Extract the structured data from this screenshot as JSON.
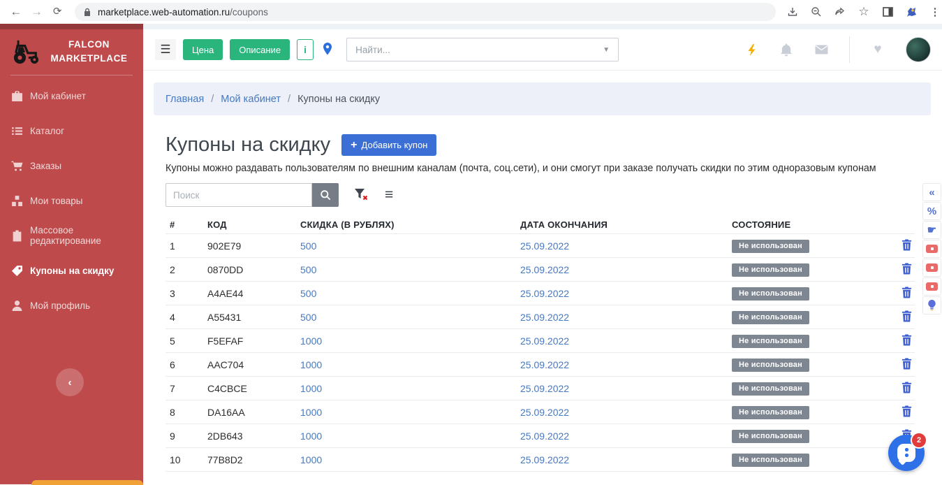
{
  "browser": {
    "url_host": "marketplace.web-automation.ru",
    "url_path": "/coupons"
  },
  "sidebar": {
    "logo_line1": "FALCON",
    "logo_line2": "MARKETPLACE",
    "items": [
      {
        "key": "cabinet",
        "icon": "briefcase",
        "label": "Мой кабинет"
      },
      {
        "key": "catalog",
        "icon": "list",
        "label": "Каталог"
      },
      {
        "key": "orders",
        "icon": "cart",
        "label": "Заказы"
      },
      {
        "key": "products",
        "icon": "boxes",
        "label": "Мои товары"
      },
      {
        "key": "bulk-edit",
        "icon": "clipboard",
        "label": "Массовое редактирование"
      },
      {
        "key": "coupons",
        "icon": "tag",
        "label": "Купоны на скидку",
        "active": true
      },
      {
        "key": "profile",
        "icon": "user",
        "label": "Мой профиль"
      }
    ]
  },
  "topbar": {
    "price_button": "Цена",
    "description_button": "Описание",
    "info_button": "i",
    "find_placeholder": "Найти..."
  },
  "breadcrumb": {
    "items": [
      "Главная",
      "Мой кабинет",
      "Купоны на скидку"
    ],
    "separator": "/"
  },
  "page": {
    "title": "Купоны на скидку",
    "add_button_plus": "+",
    "add_button_label": "Добавить купон",
    "description": "Купоны можно раздавать пользователям по внешним каналам (почта, соц.сети), и они смогут при заказе получать скидки по этим одноразовым купонам",
    "search_placeholder": "Поиск"
  },
  "table": {
    "headers": [
      "#",
      "КОД",
      "СКИДКА (В РУБЛЯХ)",
      "ДАТА ОКОНЧАНИЯ",
      "СОСТОЯНИЕ"
    ],
    "rows": [
      {
        "num": "1",
        "code": "902E79",
        "discount": "500",
        "date": "25.09.2022",
        "status": "Не использован"
      },
      {
        "num": "2",
        "code": "0870DD",
        "discount": "500",
        "date": "25.09.2022",
        "status": "Не использован"
      },
      {
        "num": "3",
        "code": "A4AE44",
        "discount": "500",
        "date": "25.09.2022",
        "status": "Не использован"
      },
      {
        "num": "4",
        "code": "A55431",
        "discount": "500",
        "date": "25.09.2022",
        "status": "Не использован"
      },
      {
        "num": "5",
        "code": "F5EFAF",
        "discount": "1000",
        "date": "25.09.2022",
        "status": "Не использован"
      },
      {
        "num": "6",
        "code": "AAC704",
        "discount": "1000",
        "date": "25.09.2022",
        "status": "Не использован"
      },
      {
        "num": "7",
        "code": "C4CBCE",
        "discount": "1000",
        "date": "25.09.2022",
        "status": "Не использован"
      },
      {
        "num": "8",
        "code": "DA16AA",
        "discount": "1000",
        "date": "25.09.2022",
        "status": "Не использован"
      },
      {
        "num": "9",
        "code": "2DB643",
        "discount": "1000",
        "date": "25.09.2022",
        "status": "Не использован"
      },
      {
        "num": "10",
        "code": "77B8D2",
        "discount": "1000",
        "date": "25.09.2022",
        "status": "Не использован"
      }
    ]
  },
  "right_toolbar": {
    "items": [
      {
        "icon": "collapse-left"
      },
      {
        "icon": "percent"
      },
      {
        "icon": "hand-pointer"
      },
      {
        "icon": "video"
      },
      {
        "icon": "video"
      },
      {
        "icon": "video"
      },
      {
        "icon": "lightbulb"
      }
    ]
  },
  "chat": {
    "badge": "2"
  },
  "colors": {
    "red": "#bf4a4b",
    "red-dark": "#943a3c",
    "green": "#2ab57d",
    "blue": "#3b6fd6",
    "link": "#4779c1",
    "badge": "#7e8691",
    "trash": "#3d5ecf",
    "chat": "#2e70e8",
    "chat-badge": "#e23b3b",
    "salmon": "#ea6a6a",
    "orange": "#f0a236",
    "yellow": "#f6b100",
    "crumb-bg": "#edf0f8",
    "tool": "#5472d3"
  }
}
